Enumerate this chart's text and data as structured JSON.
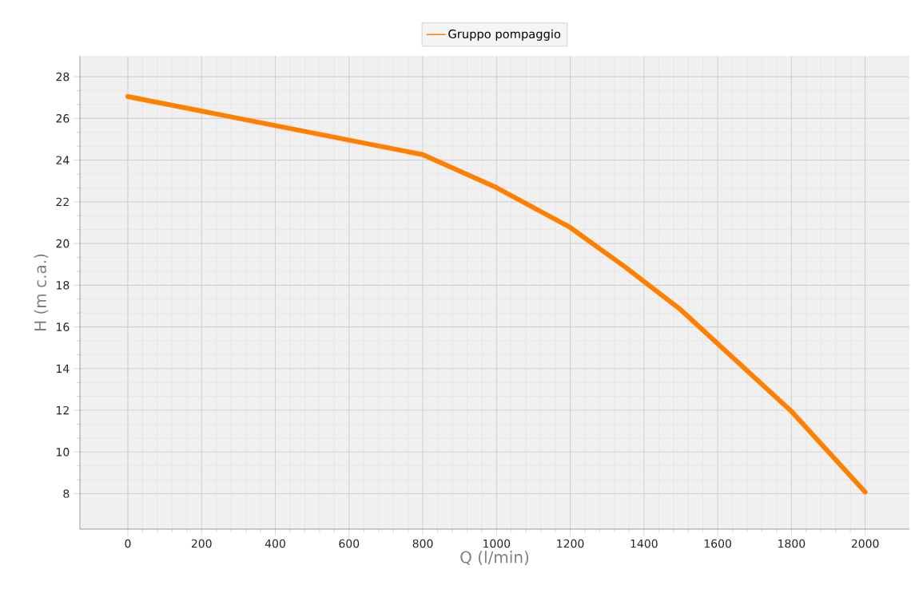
{
  "chart_data": {
    "type": "line",
    "xlabel": "Q (l/min)",
    "ylabel": "H (m c.a.)",
    "x": [
      0,
      800,
      1000,
      1200,
      1350,
      1500,
      1800,
      2000
    ],
    "series": [
      {
        "name": "Gruppo pompaggio",
        "color": "#ff8000",
        "values": [
          27.05,
          24.26,
          22.68,
          20.77,
          18.86,
          16.82,
          11.95,
          8.08
        ]
      }
    ],
    "xlim": [
      -130,
      2120
    ],
    "ylim": [
      6.3,
      29
    ],
    "xticks": [
      0,
      200,
      400,
      600,
      800,
      1000,
      1200,
      1400,
      1600,
      1800,
      2000
    ],
    "yticks": [
      8,
      10,
      12,
      14,
      16,
      18,
      20,
      22,
      24,
      26,
      28
    ],
    "grid": true,
    "legend": "top",
    "line_style": "solid"
  }
}
